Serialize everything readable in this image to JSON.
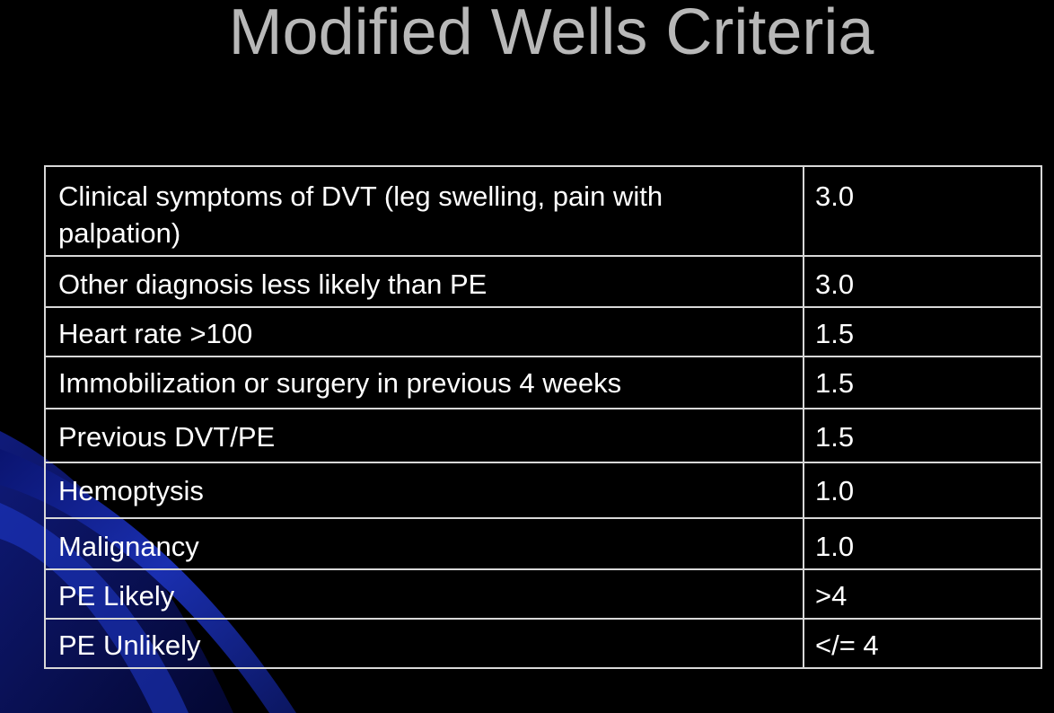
{
  "slide": {
    "title": "Modified Wells Criteria"
  },
  "colors": {
    "background": "#000000",
    "title": "#b8b8b8",
    "text": "#ffffff",
    "border": "#d8d8d8",
    "accent_swoosh": "#1a2fb0"
  },
  "table": {
    "rows": [
      {
        "criterion": "Clinical symptoms of DVT (leg swelling, pain with palpation)",
        "score": "3.0"
      },
      {
        "criterion": "Other diagnosis less likely than PE",
        "score": "3.0"
      },
      {
        "criterion": "Heart rate >100",
        "score": "1.5"
      },
      {
        "criterion": "Immobilization or surgery in previous 4 weeks",
        "score": "1.5"
      },
      {
        "criterion": "Previous DVT/PE",
        "score": "1.5"
      },
      {
        "criterion": "Hemoptysis",
        "score": "1.0"
      },
      {
        "criterion": "Malignancy",
        "score": "1.0"
      },
      {
        "criterion": "PE Likely",
        "score": ">4"
      },
      {
        "criterion": "PE Unlikely",
        "score": "</= 4"
      }
    ]
  }
}
